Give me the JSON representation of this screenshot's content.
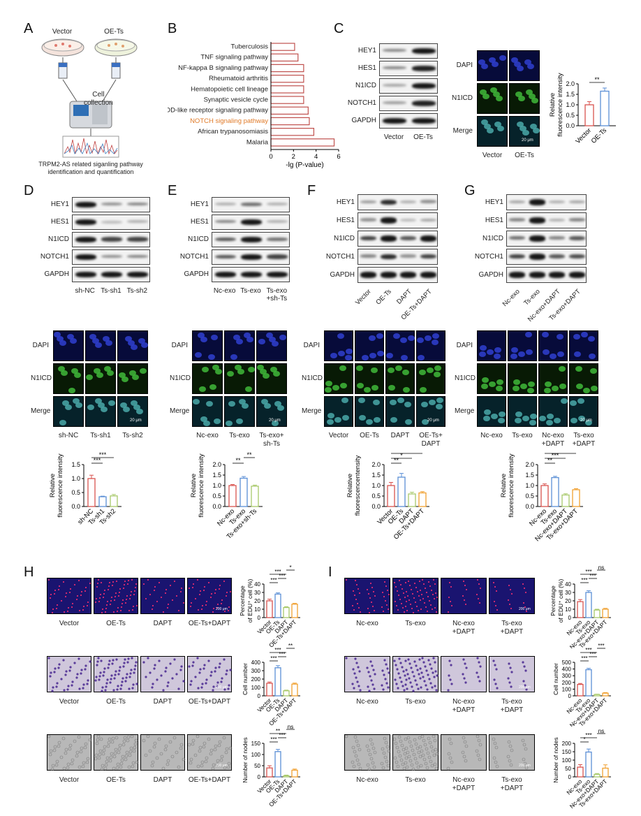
{
  "panels": {
    "A": {
      "letter": "A",
      "vector": "Vector",
      "oe": "OE-Ts",
      "collect1": "Cell",
      "collect2": "collection",
      "caption1": "TRPM2-AS related siganling pathway",
      "caption2": "identification and quantification"
    },
    "B": {
      "letter": "B",
      "xlabel": "-lg (P-value)"
    },
    "C": {
      "letter": "C",
      "rows": [
        "HEY1",
        "HES1",
        "N1ICD",
        "NOTCH1",
        "GAPDH"
      ],
      "lanes": [
        "Vector",
        "OE-Ts"
      ],
      "if_rows": [
        "DAPI",
        "N1ICD",
        "Merge"
      ],
      "if_cols": [
        "Vector",
        "OE-Ts"
      ],
      "scalebar": "20 μm",
      "ylabel1": "Relative",
      "ylabel2": "fluorescence intensity",
      "sig": "**"
    },
    "D": {
      "letter": "D",
      "rows": [
        "HEY1",
        "HES1",
        "N1ICD",
        "NOTCH1",
        "GAPDH"
      ],
      "lanes": [
        "sh-NC",
        "Ts-sh1",
        "Ts-sh2"
      ],
      "if_rows": [
        "DAPI",
        "N1ICD",
        "Merge"
      ],
      "if_cols": [
        "sh-NC",
        "Ts-sh1",
        "Ts-sh2"
      ],
      "scalebar": "20 μm",
      "ylabel1": "Relative",
      "ylabel2": "fluorescence intensity"
    },
    "E": {
      "letter": "E",
      "rows": [
        "HEY1",
        "HES1",
        "N1ICD",
        "NOTCH1",
        "GAPDH"
      ],
      "lanes": [
        "Nc-exo",
        "Ts-exo",
        "Ts-exo\n+sh-Ts"
      ],
      "if_rows": [
        "DAPI",
        "N1ICD",
        "Merge"
      ],
      "if_cols": [
        "Nc-exo",
        "Ts-exo",
        "Ts-exo+\nsh-Ts"
      ],
      "scalebar": "20 μm",
      "ylabel1": "Relative",
      "ylabel2": "fluorescence intensity"
    },
    "F": {
      "letter": "F",
      "rows": [
        "HEY1",
        "HES1",
        "N1ICD",
        "NOTCH1",
        "GAPDH"
      ],
      "lanes": [
        "Vector",
        "OE-Ts",
        "DAPT",
        "OE-Ts+DAPT"
      ],
      "if_rows": [
        "DAPI",
        "N1ICD",
        "Merge"
      ],
      "if_cols": [
        "Vector",
        "OE-Ts",
        "DAPT",
        "OE-Ts+\nDAPT"
      ],
      "scalebar": "20 μm",
      "ylabel1": "Relative",
      "ylabel2": "fluorescencentensity"
    },
    "G": {
      "letter": "G",
      "rows": [
        "HEY1",
        "HES1",
        "N1ICD",
        "NOTCH1",
        "GAPDH"
      ],
      "lanes": [
        "Nc-exo",
        "Ts-exo",
        "Nc-exo+DAPT",
        "Ts-exo+DAPT"
      ],
      "if_rows": [
        "DAPI",
        "N1ICD",
        "Merge"
      ],
      "if_cols": [
        "Nc-exo",
        "Ts-exo",
        "Nc-exo\n+DAPT",
        "Ts-exo\n+DAPT"
      ],
      "scalebar": "20 μm",
      "ylabel1": "Relative",
      "ylabel2": "fluorescence intensity"
    },
    "H": {
      "letter": "H",
      "cols": [
        "Vector",
        "OE-Ts",
        "DAPT",
        "OE-Ts+DAPT"
      ],
      "scalebar": "200 μm",
      "edu_ylabel1": "Percentage",
      "edu_ylabel2": "of EDU⁺ cell (%)",
      "tw_ylabel": "Cell number",
      "tube_ylabel": "Number of nodes"
    },
    "I": {
      "letter": "I",
      "cols": [
        "Nc-exo",
        "Ts-exo",
        "Nc-exo\n+DAPT",
        "Ts-exo\n+DAPT"
      ],
      "scalebar": "200 μm",
      "edu_ylabel1": "Percentage",
      "edu_ylabel2": "of EDU⁺ cell (%)",
      "tw_ylabel": "Cell number",
      "tube_ylabel": "Number of nodes"
    }
  },
  "chart_data": [
    {
      "id": "B",
      "type": "bar",
      "orientation": "horizontal",
      "categories": [
        "Tuberculosis",
        "TNF signaling pathway",
        "NF-kappa B signaling pathway",
        "Rheumatoid arthritis",
        "Hematopoietic cell lineage",
        "Synaptic vesicle cycle",
        "NOD-like receptor signaling pathway",
        "NOTCH signaling pathway",
        "African trypanosomiasis",
        "Malaria"
      ],
      "values": [
        2.1,
        2.4,
        2.9,
        2.9,
        2.9,
        2.9,
        3.3,
        3.4,
        3.8,
        5.6
      ],
      "highlight": "NOTCH signaling pathway",
      "highlight_color": "#e07a28",
      "bar_color": "#c0504d",
      "xlabel": "-lg (P-value)",
      "xlim": [
        0,
        6
      ],
      "xticks": [
        0,
        2,
        4,
        6
      ]
    },
    {
      "id": "C",
      "type": "bar",
      "categories": [
        "Vector",
        "OE-Ts"
      ],
      "values": [
        1.0,
        1.65
      ],
      "errors": [
        0.15,
        0.15
      ],
      "colors": [
        "#d9534f",
        "#5b8fd6"
      ],
      "ylim": [
        0,
        2.0
      ],
      "yticks": [
        "0.0",
        "0.5",
        "1.0",
        "1.5",
        "2.0"
      ],
      "sig": [
        {
          "a": 0,
          "b": 1,
          "t": "**"
        }
      ]
    },
    {
      "id": "D",
      "type": "bar",
      "categories": [
        "sh-NC",
        "Ts-sh1",
        "Ts-sh2"
      ],
      "values": [
        1.0,
        0.35,
        0.38
      ],
      "errors": [
        0.12,
        0.02,
        0.05
      ],
      "colors": [
        "#d9534f",
        "#5b8fd6",
        "#a8c96a"
      ],
      "ylim": [
        0,
        1.5
      ],
      "yticks": [
        "0.0",
        "0.5",
        "1.0",
        "1.5"
      ],
      "sig": [
        {
          "a": 0,
          "b": 1,
          "t": "***"
        },
        {
          "a": 0,
          "b": 2,
          "t": "***"
        }
      ]
    },
    {
      "id": "E",
      "type": "bar",
      "categories": [
        "Nc-exo",
        "Ts-exo",
        "Ts-exo+sh-Ts"
      ],
      "values": [
        1.0,
        1.35,
        0.97
      ],
      "errors": [
        0.05,
        0.08,
        0.05
      ],
      "colors": [
        "#d9534f",
        "#5b8fd6",
        "#a8c96a"
      ],
      "ylim": [
        0,
        2.0
      ],
      "yticks": [
        "0.0",
        "0.5",
        "1.0",
        "1.5",
        "2.0"
      ],
      "sig": [
        {
          "a": 0,
          "b": 1,
          "t": "**"
        },
        {
          "a": 1,
          "b": 2,
          "t": "**"
        }
      ]
    },
    {
      "id": "F",
      "type": "bar",
      "categories": [
        "Vector",
        "OE-Ts",
        "DAPT",
        "OE-Ts+DAPT"
      ],
      "values": [
        1.0,
        1.4,
        0.6,
        0.65
      ],
      "errors": [
        0.15,
        0.18,
        0.08,
        0.06
      ],
      "colors": [
        "#d9534f",
        "#5b8fd6",
        "#a8c96a",
        "#f0a030"
      ],
      "ylim": [
        0,
        2.0
      ],
      "yticks": [
        "0.0",
        "0.5",
        "1.0",
        "1.5",
        "2.0"
      ],
      "sig": [
        {
          "a": 0,
          "b": 1,
          "t": "**"
        },
        {
          "a": 0,
          "b": 2,
          "t": "*"
        },
        {
          "a": 0,
          "b": 3,
          "t": "***"
        },
        {
          "a": 2,
          "b": 3,
          "t": "ns"
        }
      ]
    },
    {
      "id": "G",
      "type": "bar",
      "categories": [
        "Nc-exo",
        "Ts-exo",
        "Nc-exo+DAPT",
        "Ts-exo+DAPT"
      ],
      "values": [
        1.0,
        1.38,
        0.55,
        0.8
      ],
      "errors": [
        0.08,
        0.06,
        0.06,
        0.05
      ],
      "colors": [
        "#d9534f",
        "#5b8fd6",
        "#a8c96a",
        "#f0a030"
      ],
      "ylim": [
        0,
        2.0
      ],
      "yticks": [
        "0.0",
        "0.5",
        "1.0",
        "1.5",
        "2.0"
      ],
      "sig": [
        {
          "a": 0,
          "b": 1,
          "t": "**"
        },
        {
          "a": 0,
          "b": 2,
          "t": "***"
        },
        {
          "a": 0,
          "b": 3,
          "t": "***"
        },
        {
          "a": 2,
          "b": 3,
          "t": "*"
        }
      ]
    },
    {
      "id": "H-edu",
      "type": "bar",
      "categories": [
        "Vector",
        "OE-Ts",
        "DAPT",
        "OE-Ts+DAPT"
      ],
      "values": [
        20,
        28,
        12,
        16
      ],
      "errors": [
        2,
        1.5,
        1,
        1
      ],
      "colors": [
        "#d9534f",
        "#5b8fd6",
        "#a8c96a",
        "#f0a030"
      ],
      "ylim": [
        0,
        40
      ],
      "yticks": [
        "0",
        "10",
        "20",
        "30",
        "40"
      ],
      "sig": [
        {
          "a": 0,
          "b": 1,
          "t": "***"
        },
        {
          "a": 1,
          "b": 2,
          "t": "***"
        },
        {
          "a": 0,
          "b": 2,
          "t": "***"
        },
        {
          "a": 2,
          "b": 3,
          "t": "*"
        }
      ]
    },
    {
      "id": "H-tw",
      "type": "bar",
      "categories": [
        "Vector",
        "OE-Ts",
        "DAPT",
        "OE-Ts+DAPT"
      ],
      "values": [
        150,
        335,
        60,
        140
      ],
      "errors": [
        15,
        25,
        8,
        12
      ],
      "colors": [
        "#d9534f",
        "#5b8fd6",
        "#a8c96a",
        "#f0a030"
      ],
      "ylim": [
        0,
        400
      ],
      "yticks": [
        "0",
        "100",
        "200",
        "300",
        "400"
      ],
      "sig": [
        {
          "a": 0,
          "b": 1,
          "t": "***"
        },
        {
          "a": 1,
          "b": 2,
          "t": "***"
        },
        {
          "a": 0,
          "b": 2,
          "t": "***"
        },
        {
          "a": 2,
          "b": 3,
          "t": "**"
        }
      ]
    },
    {
      "id": "H-tube",
      "type": "bar",
      "categories": [
        "Vector",
        "OE-Ts",
        "DAPT",
        "OE-Ts+DAPT"
      ],
      "values": [
        40,
        113,
        5,
        30
      ],
      "errors": [
        10,
        10,
        3,
        5
      ],
      "colors": [
        "#d9534f",
        "#5b8fd6",
        "#a8c96a",
        "#f0a030"
      ],
      "ylim": [
        0,
        150
      ],
      "yticks": [
        "0",
        "50",
        "100",
        "150"
      ],
      "sig": [
        {
          "a": 0,
          "b": 1,
          "t": "***"
        },
        {
          "a": 1,
          "b": 2,
          "t": "***"
        },
        {
          "a": 0,
          "b": 2,
          "t": "**"
        },
        {
          "a": 2,
          "b": 3,
          "t": "ns"
        }
      ]
    },
    {
      "id": "I-edu",
      "type": "bar",
      "categories": [
        "Nc-exo",
        "Ts-exo",
        "Nc-exo+DAPT",
        "Ts-exo+DAPT"
      ],
      "values": [
        19,
        30,
        9,
        10
      ],
      "errors": [
        2.5,
        2,
        1,
        1
      ],
      "colors": [
        "#d9534f",
        "#5b8fd6",
        "#a8c96a",
        "#f0a030"
      ],
      "ylim": [
        0,
        40
      ],
      "yticks": [
        "0",
        "10",
        "20",
        "30",
        "40"
      ],
      "sig": [
        {
          "a": 0,
          "b": 1,
          "t": "***"
        },
        {
          "a": 1,
          "b": 2,
          "t": "***"
        },
        {
          "a": 0,
          "b": 2,
          "t": "***"
        },
        {
          "a": 2,
          "b": 3,
          "t": "ns"
        }
      ]
    },
    {
      "id": "I-tw",
      "type": "bar",
      "categories": [
        "Nc-exo",
        "Ts-exo",
        "Nc-exo+DAPT",
        "Ts-exo+DAPT"
      ],
      "values": [
        170,
        390,
        20,
        40
      ],
      "errors": [
        15,
        20,
        5,
        8
      ],
      "colors": [
        "#d9534f",
        "#5b8fd6",
        "#a8c96a",
        "#f0a030"
      ],
      "ylim": [
        0,
        500
      ],
      "yticks": [
        "0",
        "100",
        "200",
        "300",
        "400",
        "500"
      ],
      "sig": [
        {
          "a": 0,
          "b": 1,
          "t": "***"
        },
        {
          "a": 1,
          "b": 2,
          "t": "***"
        },
        {
          "a": 0,
          "b": 2,
          "t": "***"
        },
        {
          "a": 2,
          "b": 3,
          "t": "***"
        }
      ]
    },
    {
      "id": "I-tube",
      "type": "bar",
      "categories": [
        "Nc-exo",
        "Ts-exo",
        "Nc-exo+DAPT",
        "Ts-exo+DAPT"
      ],
      "values": [
        58,
        148,
        15,
        52
      ],
      "errors": [
        15,
        18,
        5,
        20
      ],
      "colors": [
        "#d9534f",
        "#5b8fd6",
        "#a8c96a",
        "#f0a030"
      ],
      "ylim": [
        0,
        200
      ],
      "yticks": [
        "0",
        "50",
        "100",
        "150",
        "200"
      ],
      "sig": [
        {
          "a": 0,
          "b": 1,
          "t": "*"
        },
        {
          "a": 0,
          "b": 2,
          "t": "***"
        },
        {
          "a": 2,
          "b": 3,
          "t": "ns"
        }
      ]
    }
  ]
}
